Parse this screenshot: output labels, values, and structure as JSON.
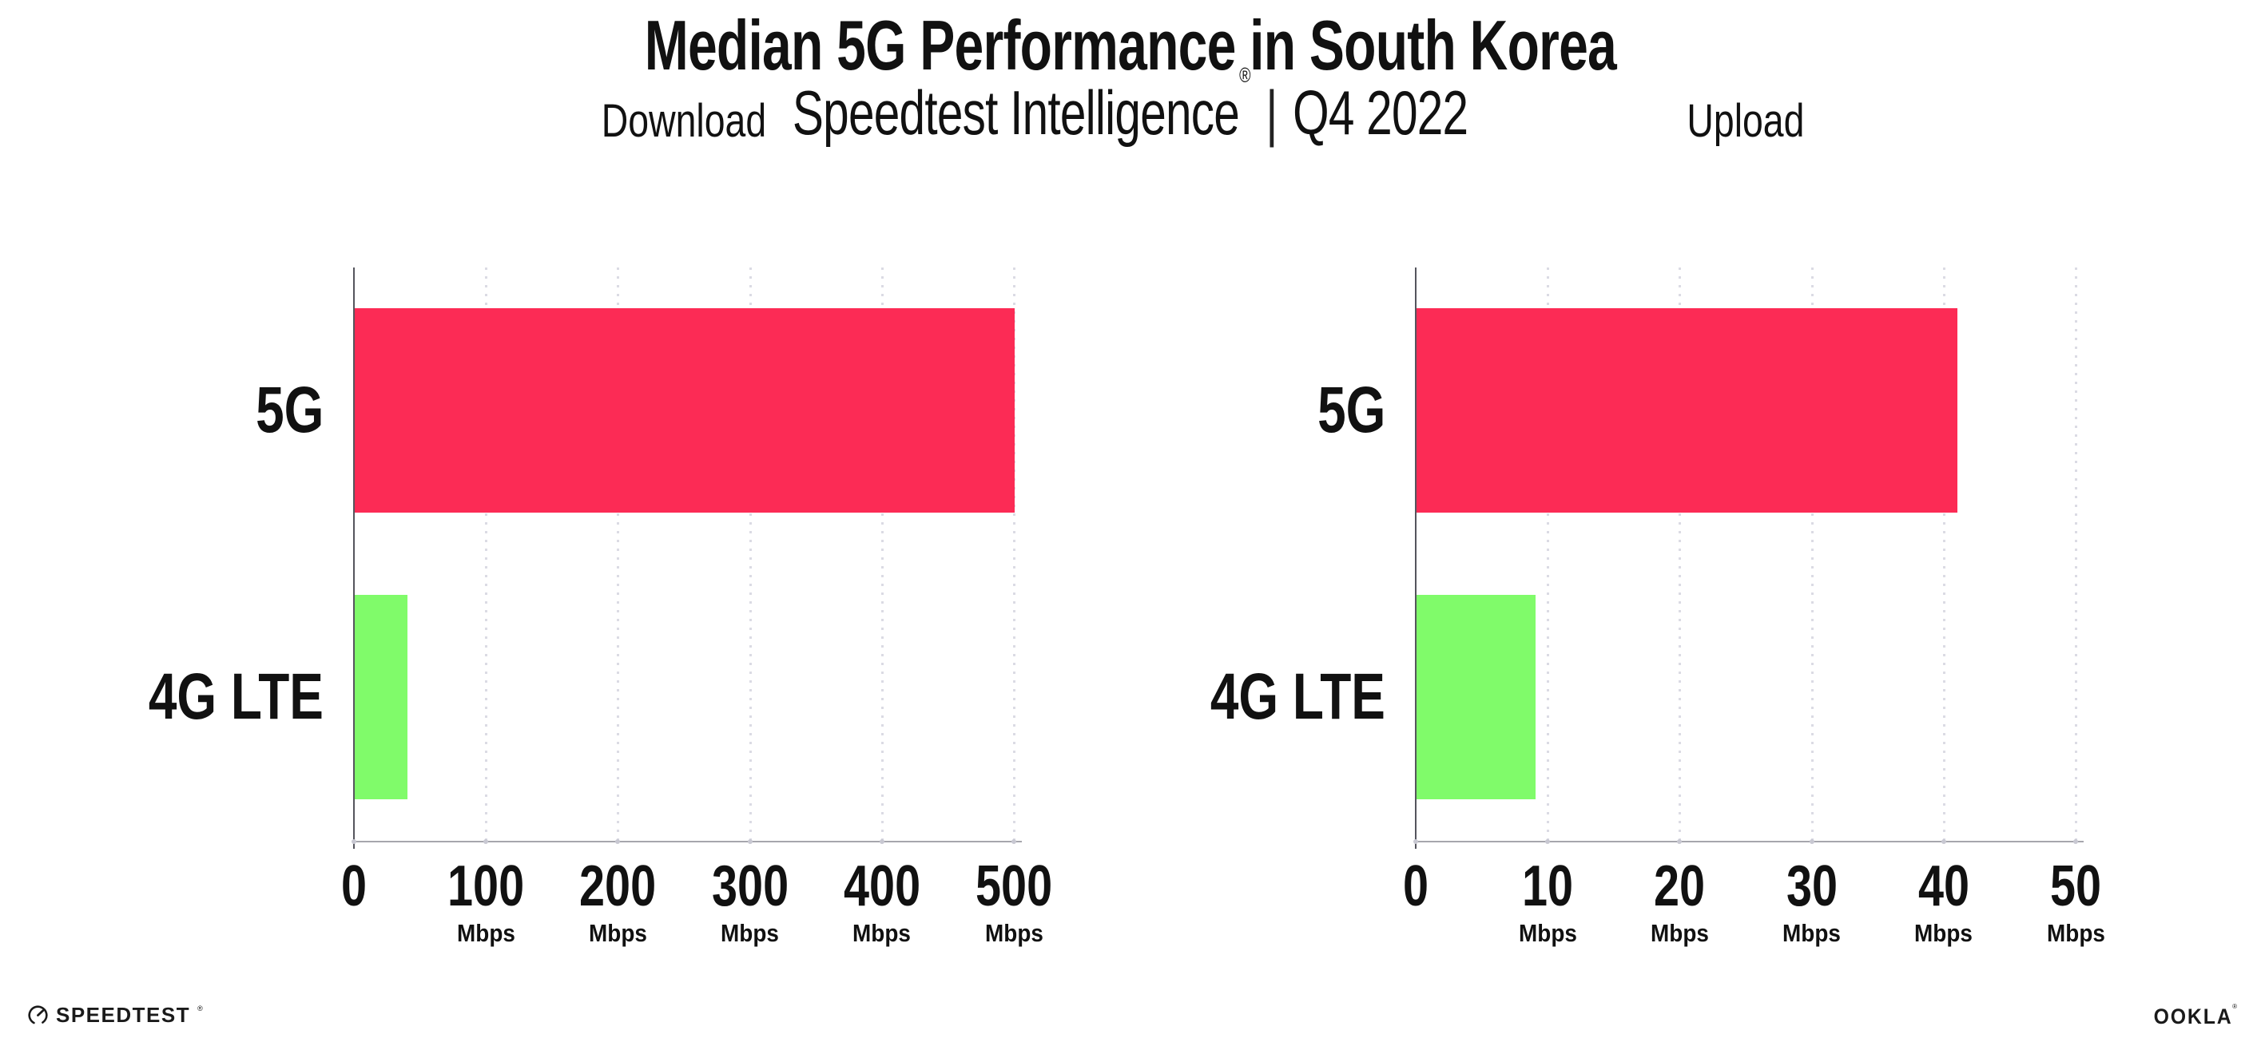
{
  "header": {
    "title": "Median 5G Performance in South Korea",
    "subtitle_brand": "Speedtest Intelligence",
    "subtitle_reg": "®",
    "subtitle_separator": "|",
    "subtitle_period": "Q4 2022"
  },
  "footer": {
    "speedtest_label": "SPEEDTEST",
    "speedtest_reg": "®",
    "ookla_label": "OOKLA",
    "ookla_reg": "®"
  },
  "colors": {
    "bar_5g": "#FC2B55",
    "bar_4g_lte": "#80FB6A",
    "gridline": "#DBDBE4",
    "axis_line": "#55555D",
    "baseline": "#A6A6AD",
    "baseline_tick_dot": "#C8C8D2",
    "text": "#111111"
  },
  "chart_data": [
    {
      "type": "bar",
      "orientation": "horizontal",
      "title": "Download",
      "categories": [
        "5G",
        "4G LTE"
      ],
      "values": [
        500,
        40
      ],
      "unit": "Mbps",
      "xticks": [
        0,
        100,
        200,
        300,
        400,
        500
      ],
      "xlim": [
        0,
        500
      ],
      "grid": "vertical-dotted",
      "legend": "none",
      "series_colors": [
        "#FC2B55",
        "#80FB6A"
      ]
    },
    {
      "type": "bar",
      "orientation": "horizontal",
      "title": "Upload",
      "categories": [
        "5G",
        "4G LTE"
      ],
      "values": [
        41,
        9
      ],
      "unit": "Mbps",
      "xticks": [
        0,
        10,
        20,
        30,
        40,
        50
      ],
      "xlim": [
        0,
        50
      ],
      "grid": "vertical-dotted",
      "legend": "none",
      "series_colors": [
        "#FC2B55",
        "#80FB6A"
      ]
    }
  ]
}
